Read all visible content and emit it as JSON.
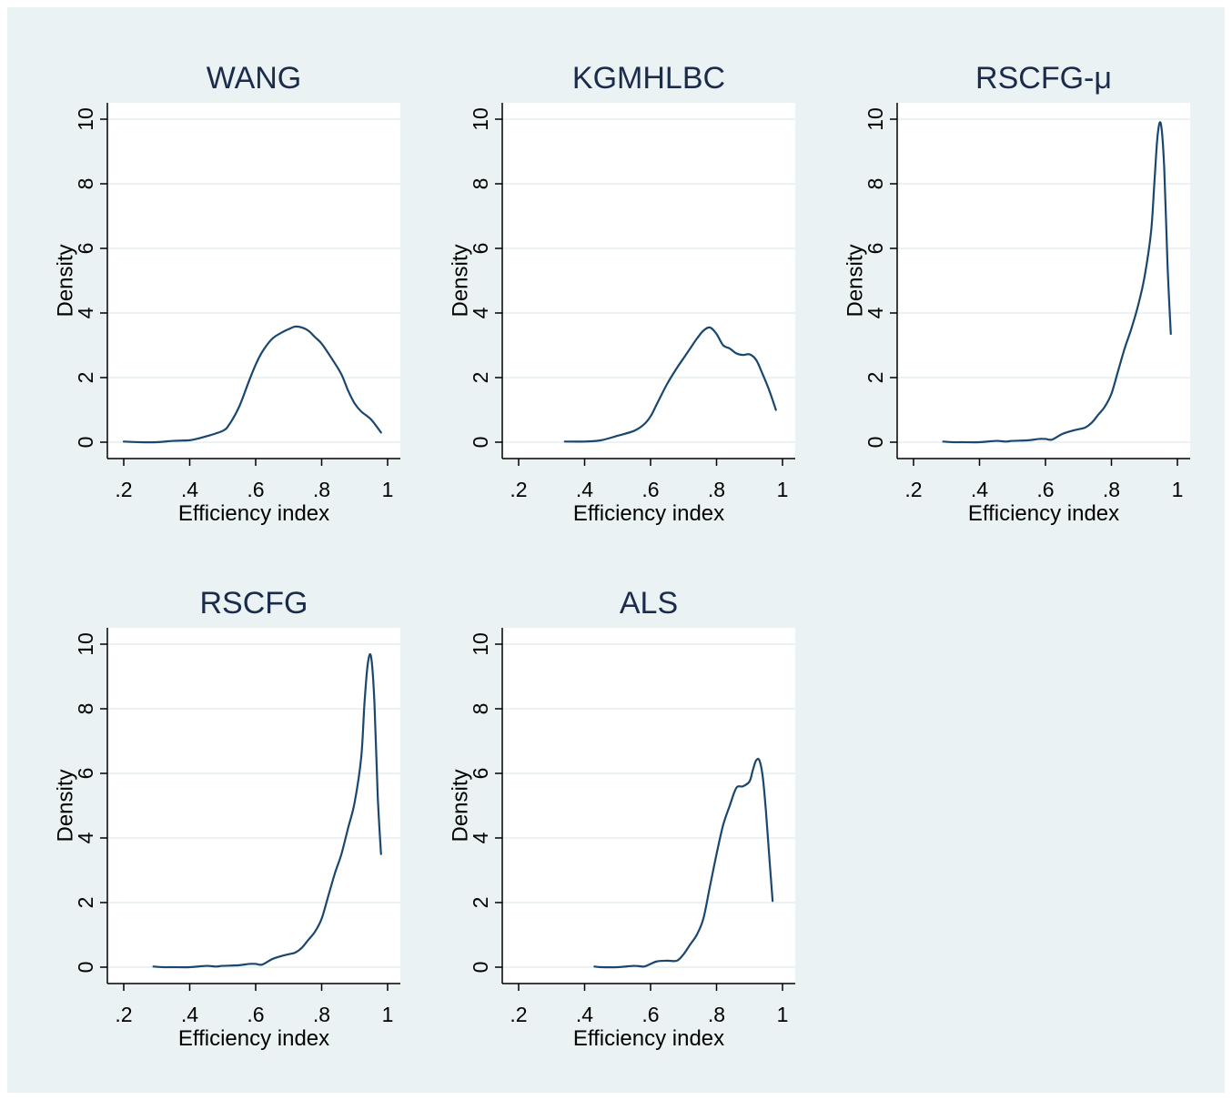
{
  "colors": {
    "background": "#eaf2f3",
    "plot_region": "#ffffff",
    "gridline": "#eaf2f3",
    "curve": "#1a476f",
    "title": "#1a2b4c"
  },
  "chart_data": [
    {
      "type": "line",
      "title": "WANG",
      "xlabel": "Efficiency index",
      "ylabel": "Density",
      "xlim": [
        0.2,
        1.0
      ],
      "ylim": [
        0,
        10
      ],
      "xticks": [
        ".2",
        ".4",
        ".6",
        ".8",
        "1"
      ],
      "yticks": [
        "0",
        "2",
        "4",
        "6",
        "8",
        "10"
      ],
      "grid": true,
      "series": [
        {
          "x": [
            0.2,
            0.25,
            0.3,
            0.35,
            0.4,
            0.42,
            0.45,
            0.5,
            0.52,
            0.55,
            0.58,
            0.6,
            0.62,
            0.65,
            0.68,
            0.7,
            0.72,
            0.74,
            0.76,
            0.78,
            0.8,
            0.83,
            0.86,
            0.88,
            0.9,
            0.92,
            0.95,
            0.98
          ],
          "y": [
            0.02,
            0.0,
            0.0,
            0.04,
            0.06,
            0.1,
            0.18,
            0.35,
            0.55,
            1.1,
            1.9,
            2.4,
            2.8,
            3.2,
            3.4,
            3.5,
            3.58,
            3.55,
            3.45,
            3.25,
            3.05,
            2.6,
            2.1,
            1.6,
            1.2,
            0.95,
            0.7,
            0.3
          ]
        }
      ]
    },
    {
      "type": "line",
      "title": "KGMHLBC",
      "xlabel": "Efficiency index",
      "ylabel": "Density",
      "xlim": [
        0.2,
        1.0
      ],
      "ylim": [
        0,
        10
      ],
      "xticks": [
        ".2",
        ".4",
        ".6",
        ".8",
        "1"
      ],
      "yticks": [
        "0",
        "2",
        "4",
        "6",
        "8",
        "10"
      ],
      "grid": true,
      "series": [
        {
          "x": [
            0.34,
            0.4,
            0.45,
            0.5,
            0.55,
            0.58,
            0.6,
            0.62,
            0.65,
            0.68,
            0.7,
            0.72,
            0.74,
            0.76,
            0.78,
            0.8,
            0.82,
            0.84,
            0.86,
            0.88,
            0.9,
            0.92,
            0.94,
            0.96,
            0.98
          ],
          "y": [
            0.02,
            0.02,
            0.06,
            0.2,
            0.35,
            0.55,
            0.8,
            1.2,
            1.8,
            2.3,
            2.6,
            2.9,
            3.2,
            3.45,
            3.55,
            3.35,
            3.0,
            2.9,
            2.75,
            2.7,
            2.72,
            2.55,
            2.1,
            1.6,
            1.0
          ]
        }
      ]
    },
    {
      "type": "line",
      "title": "RSCFG-μ",
      "xlabel": "Efficiency index",
      "ylabel": "Density",
      "xlim": [
        0.2,
        1.0
      ],
      "ylim": [
        0,
        10
      ],
      "xticks": [
        ".2",
        ".4",
        ".6",
        ".8",
        "1"
      ],
      "yticks": [
        "0",
        "2",
        "4",
        "6",
        "8",
        "10"
      ],
      "grid": true,
      "series": [
        {
          "x": [
            0.29,
            0.32,
            0.35,
            0.4,
            0.45,
            0.48,
            0.5,
            0.55,
            0.58,
            0.6,
            0.62,
            0.65,
            0.68,
            0.7,
            0.72,
            0.74,
            0.76,
            0.78,
            0.8,
            0.82,
            0.84,
            0.86,
            0.88,
            0.9,
            0.92,
            0.93,
            0.94,
            0.95,
            0.96,
            0.97,
            0.98
          ],
          "y": [
            0.02,
            0.0,
            0.0,
            0.0,
            0.04,
            0.02,
            0.04,
            0.06,
            0.1,
            0.1,
            0.08,
            0.25,
            0.35,
            0.4,
            0.45,
            0.6,
            0.85,
            1.1,
            1.5,
            2.2,
            2.9,
            3.5,
            4.2,
            5.1,
            6.5,
            8.0,
            9.5,
            9.85,
            8.5,
            5.5,
            3.35
          ]
        }
      ]
    },
    {
      "type": "line",
      "title": "RSCFG",
      "xlabel": "Efficiency index",
      "ylabel": "Density",
      "xlim": [
        0.2,
        1.0
      ],
      "ylim": [
        0,
        10
      ],
      "xticks": [
        ".2",
        ".4",
        ".6",
        ".8",
        "1"
      ],
      "yticks": [
        "0",
        "2",
        "4",
        "6",
        "8",
        "10"
      ],
      "grid": true,
      "series": [
        {
          "x": [
            0.29,
            0.32,
            0.35,
            0.4,
            0.45,
            0.48,
            0.5,
            0.55,
            0.58,
            0.6,
            0.62,
            0.65,
            0.68,
            0.7,
            0.72,
            0.74,
            0.76,
            0.78,
            0.8,
            0.82,
            0.84,
            0.86,
            0.88,
            0.9,
            0.92,
            0.93,
            0.94,
            0.95,
            0.96,
            0.97,
            0.98
          ],
          "y": [
            0.02,
            0.0,
            0.0,
            0.0,
            0.04,
            0.02,
            0.04,
            0.06,
            0.1,
            0.1,
            0.08,
            0.25,
            0.35,
            0.4,
            0.45,
            0.6,
            0.85,
            1.1,
            1.5,
            2.2,
            2.9,
            3.5,
            4.3,
            5.1,
            6.5,
            8.2,
            9.4,
            9.6,
            8.2,
            5.3,
            3.5
          ]
        }
      ]
    },
    {
      "type": "line",
      "title": "ALS",
      "xlabel": "Efficiency index",
      "ylabel": "Density",
      "xlim": [
        0.2,
        1.0
      ],
      "ylim": [
        0,
        10
      ],
      "xticks": [
        ".2",
        ".4",
        ".6",
        ".8",
        "1"
      ],
      "yticks": [
        "0",
        "2",
        "4",
        "6",
        "8",
        "10"
      ],
      "grid": true,
      "series": [
        {
          "x": [
            0.43,
            0.45,
            0.5,
            0.55,
            0.58,
            0.6,
            0.62,
            0.65,
            0.68,
            0.7,
            0.72,
            0.74,
            0.76,
            0.78,
            0.8,
            0.82,
            0.84,
            0.86,
            0.88,
            0.9,
            0.91,
            0.92,
            0.93,
            0.94,
            0.95,
            0.96,
            0.97
          ],
          "y": [
            0.02,
            0.0,
            0.0,
            0.04,
            0.02,
            0.1,
            0.18,
            0.2,
            0.2,
            0.4,
            0.7,
            1.0,
            1.5,
            2.5,
            3.5,
            4.4,
            5.0,
            5.55,
            5.6,
            5.75,
            6.1,
            6.4,
            6.4,
            5.9,
            4.8,
            3.4,
            2.05
          ]
        }
      ]
    }
  ]
}
